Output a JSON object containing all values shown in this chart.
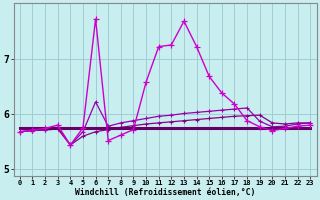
{
  "xlabel": "Windchill (Refroidissement éolien,°C)",
  "x": [
    0,
    1,
    2,
    3,
    4,
    5,
    6,
    7,
    8,
    9,
    10,
    11,
    12,
    13,
    14,
    15,
    16,
    17,
    18,
    19,
    20,
    21,
    22,
    23
  ],
  "line_flat": [
    5.75,
    5.75,
    5.75,
    5.75,
    5.75,
    5.75,
    5.75,
    5.75,
    5.75,
    5.75,
    5.75,
    5.75,
    5.75,
    5.75,
    5.75,
    5.75,
    5.75,
    5.75,
    5.75,
    5.75,
    5.75,
    5.75,
    5.75,
    5.75
  ],
  "line_rise": [
    5.68,
    5.7,
    5.71,
    5.73,
    5.44,
    5.6,
    5.68,
    5.72,
    5.76,
    5.79,
    5.82,
    5.84,
    5.86,
    5.88,
    5.9,
    5.92,
    5.94,
    5.96,
    5.97,
    5.98,
    5.84,
    5.82,
    5.84,
    5.84
  ],
  "line_mid": [
    5.68,
    5.7,
    5.72,
    5.76,
    5.44,
    5.68,
    6.22,
    5.78,
    5.84,
    5.88,
    5.92,
    5.96,
    5.98,
    6.01,
    6.03,
    6.05,
    6.07,
    6.09,
    6.11,
    5.87,
    5.77,
    5.78,
    5.82,
    5.84
  ],
  "line_main": [
    5.68,
    5.71,
    5.74,
    5.8,
    5.44,
    5.75,
    7.72,
    5.52,
    5.62,
    5.72,
    6.58,
    7.22,
    7.25,
    7.68,
    7.22,
    6.68,
    6.38,
    6.18,
    5.88,
    5.77,
    5.7,
    5.74,
    5.78,
    5.8
  ],
  "bg_color": "#c8eef0",
  "color_flat": "#660066",
  "color_rise": "#880088",
  "color_mid": "#9900aa",
  "color_main": "#cc00cc",
  "grid_color": "#a0ccd4",
  "ylim": [
    4.88,
    8.0
  ],
  "yticks": [
    5,
    6,
    7
  ],
  "xticks": [
    0,
    1,
    2,
    3,
    4,
    5,
    6,
    7,
    8,
    9,
    10,
    11,
    12,
    13,
    14,
    15,
    16,
    17,
    18,
    19,
    20,
    21,
    22,
    23
  ]
}
